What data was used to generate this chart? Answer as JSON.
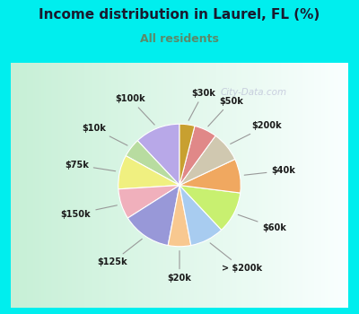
{
  "title": "Income distribution in Laurel, FL (%)",
  "subtitle": "All residents",
  "title_color": "#1a1a2e",
  "subtitle_color": "#5a8a6a",
  "bg_cyan": "#00eeee",
  "bg_inner_left": "#c8ecd8",
  "bg_inner_right": "#e8f8f8",
  "watermark": "City-Data.com",
  "labels": [
    "$100k",
    "$10k",
    "$75k",
    "$150k",
    "$125k",
    "$20k",
    "> $200k",
    "$60k",
    "$40k",
    "$200k",
    "$50k",
    "$30k"
  ],
  "values": [
    12,
    5,
    9,
    8,
    13,
    6,
    9,
    11,
    9,
    8,
    6,
    4
  ],
  "colors": [
    "#b8a8e8",
    "#b8dca0",
    "#f0f080",
    "#f0b0bc",
    "#9898d8",
    "#f8c890",
    "#a8ccf0",
    "#c8f070",
    "#f0a860",
    "#d0c8b0",
    "#e08888",
    "#c8a030"
  ],
  "start_angle": 90,
  "title_fontsize": 11,
  "subtitle_fontsize": 9,
  "label_fontsize": 7
}
